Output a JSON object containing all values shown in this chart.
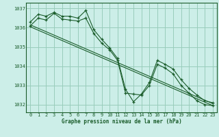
{
  "title": "Graphe pression niveau de la mer (hPa)",
  "bg_color": "#cceee8",
  "grid_color": "#99ccbb",
  "line_color": "#1a5c2a",
  "marker_color": "#1a5c2a",
  "ylim": [
    1031.6,
    1037.3
  ],
  "xlim": [
    -0.5,
    23.5
  ],
  "yticks": [
    1032,
    1033,
    1034,
    1035,
    1036,
    1037
  ],
  "xticks": [
    0,
    1,
    2,
    3,
    4,
    5,
    6,
    7,
    8,
    9,
    10,
    11,
    12,
    13,
    14,
    15,
    16,
    17,
    18,
    19,
    20,
    21,
    22,
    23
  ],
  "series": [
    {
      "x": [
        0,
        1,
        2,
        3,
        4,
        5,
        6,
        7,
        8,
        9,
        10,
        11,
        12,
        13,
        14,
        15,
        16,
        17,
        18,
        19,
        20,
        21,
        22,
        23
      ],
      "y": [
        1036.3,
        1036.7,
        1036.6,
        1036.8,
        1036.6,
        1036.6,
        1036.5,
        1036.9,
        1035.9,
        1035.4,
        1034.95,
        1034.4,
        1032.8,
        1032.15,
        1032.55,
        1033.15,
        1034.3,
        1034.1,
        1033.85,
        1033.3,
        1032.85,
        1032.5,
        1032.2,
        1032.1
      ],
      "has_markers": true
    },
    {
      "x": [
        0,
        1,
        2,
        3,
        4,
        5,
        6,
        7,
        8,
        9,
        10,
        11,
        12,
        13,
        14,
        15,
        16,
        17,
        18,
        19,
        20,
        21,
        22,
        23
      ],
      "y": [
        1036.1,
        1036.5,
        1036.4,
        1036.75,
        1036.45,
        1036.4,
        1036.35,
        1036.5,
        1035.7,
        1035.2,
        1034.85,
        1034.3,
        1032.6,
        1032.55,
        1032.5,
        1033.0,
        1034.1,
        1033.9,
        1033.6,
        1033.0,
        1032.6,
        1032.2,
        1032.0,
        1031.95
      ],
      "has_markers": true
    },
    {
      "x": [
        0,
        23
      ],
      "y": [
        1036.15,
        1032.05
      ],
      "has_markers": false
    },
    {
      "x": [
        0,
        23
      ],
      "y": [
        1036.05,
        1031.95
      ],
      "has_markers": false
    }
  ],
  "xlabel_fontsize": 5.5,
  "tick_fontsize": 5.0
}
